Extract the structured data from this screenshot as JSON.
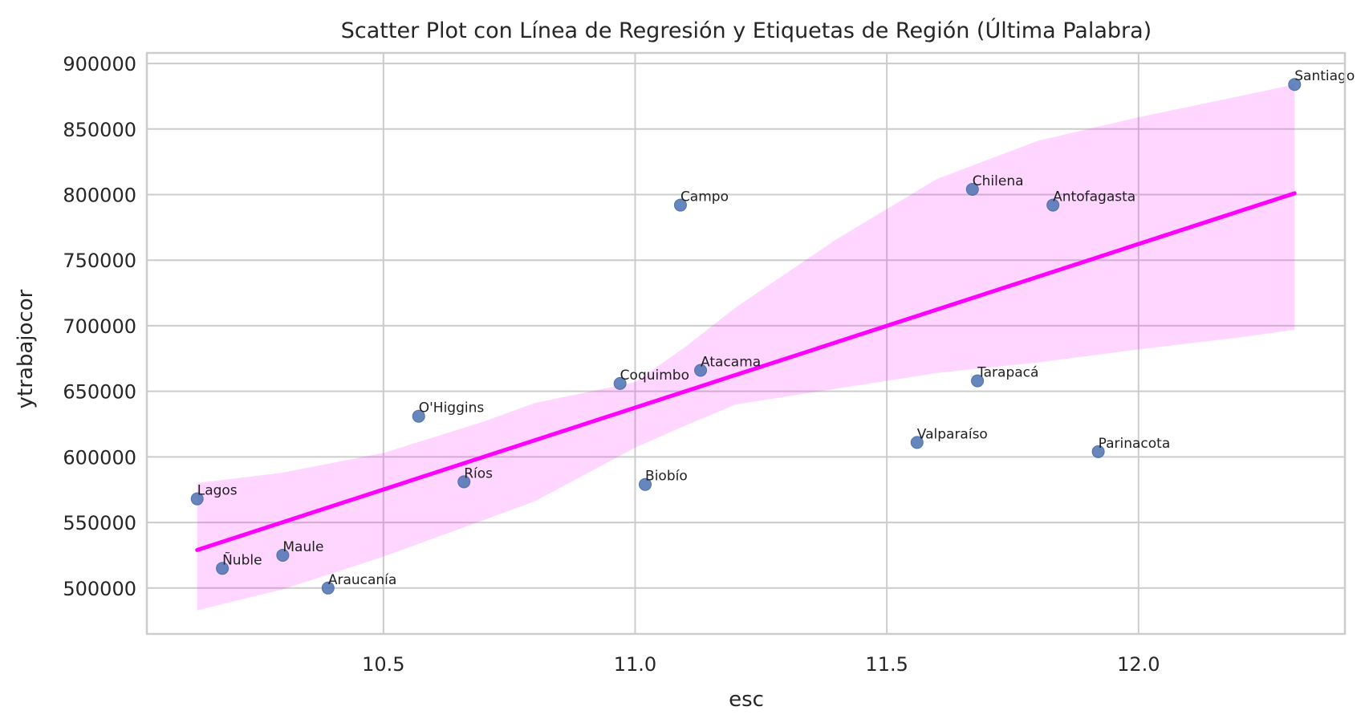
{
  "chart_data": {
    "type": "scatter",
    "title": "Scatter Plot con Línea de Regresión y Etiquetas de Región (Última Palabra)",
    "xlabel": "esc",
    "ylabel": "ytrabajocor",
    "xlim": [
      10.03,
      12.41
    ],
    "ylim": [
      465000,
      908000
    ],
    "x_ticks": [
      10.5,
      11.0,
      11.5,
      12.0
    ],
    "x_tick_labels": [
      "10.5",
      "11.0",
      "11.5",
      "12.0"
    ],
    "y_ticks": [
      500000,
      550000,
      600000,
      650000,
      700000,
      750000,
      800000,
      850000,
      900000
    ],
    "y_tick_labels": [
      "500000",
      "550000",
      "600000",
      "650000",
      "700000",
      "750000",
      "800000",
      "850000",
      "900000"
    ],
    "grid": true,
    "colors": {
      "points": "#4c72b0",
      "regression_line": "#ff00ff",
      "confidence_band": "#ff00ff",
      "grid": "#cccccc",
      "axes": "#cccccc"
    },
    "points": [
      {
        "label": "Lagos",
        "x": 10.13,
        "y": 568000
      },
      {
        "label": "Ñuble",
        "x": 10.18,
        "y": 515000
      },
      {
        "label": "Maule",
        "x": 10.3,
        "y": 525000
      },
      {
        "label": "Araucanía",
        "x": 10.39,
        "y": 500000
      },
      {
        "label": "O'Higgins",
        "x": 10.57,
        "y": 631000
      },
      {
        "label": "Ríos",
        "x": 10.66,
        "y": 581000
      },
      {
        "label": "Coquimbo",
        "x": 10.97,
        "y": 656000
      },
      {
        "label": "Biobío",
        "x": 11.02,
        "y": 579000
      },
      {
        "label": "Campo",
        "x": 11.09,
        "y": 792000
      },
      {
        "label": "Atacama",
        "x": 11.13,
        "y": 666000
      },
      {
        "label": "Valparaíso",
        "x": 11.56,
        "y": 611000
      },
      {
        "label": "Chilena",
        "x": 11.67,
        "y": 804000
      },
      {
        "label": "Tarapacá",
        "x": 11.68,
        "y": 658000
      },
      {
        "label": "Antofagasta",
        "x": 11.83,
        "y": 792000
      },
      {
        "label": "Parinacota",
        "x": 11.92,
        "y": 604000
      },
      {
        "label": "Santiago",
        "x": 12.31,
        "y": 884000
      }
    ],
    "regression": {
      "x": [
        10.13,
        12.31
      ],
      "y": [
        529000,
        801000
      ]
    },
    "confidence_band": {
      "x": [
        10.13,
        10.3,
        10.5,
        10.7,
        10.8,
        11.0,
        11.1,
        11.2,
        11.4,
        11.6,
        11.8,
        12.0,
        12.2,
        12.31
      ],
      "upper": [
        580000,
        588000,
        603000,
        627000,
        641000,
        657000,
        684000,
        714000,
        766000,
        812000,
        841000,
        859000,
        875000,
        884000
      ],
      "lower": [
        483000,
        499000,
        524000,
        552000,
        566000,
        607000,
        624000,
        640000,
        652000,
        664000,
        672000,
        682000,
        691000,
        697000
      ]
    }
  }
}
